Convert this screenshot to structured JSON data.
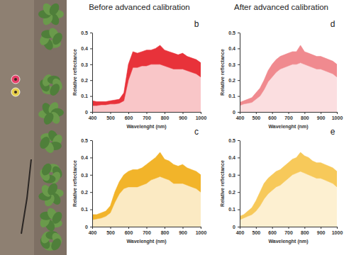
{
  "chart_data": [
    {
      "type": "range_area",
      "panel_label": "b",
      "title": "Before advanced calibration",
      "x_label": "Wavelenght (nm)",
      "y_label": "Relative reflectance",
      "x": [
        400,
        425,
        450,
        475,
        500,
        525,
        550,
        575,
        600,
        625,
        650,
        675,
        700,
        725,
        750,
        775,
        800,
        825,
        850,
        875,
        900,
        925,
        950,
        975,
        1000
      ],
      "xlim": [
        400,
        1000
      ],
      "xticks": [
        400,
        500,
        600,
        700,
        800,
        900,
        1000
      ],
      "ylim": [
        0,
        0.5
      ],
      "yticks": [
        0,
        0.1,
        0.2,
        0.3,
        0.4,
        0.5
      ],
      "series": [
        {
          "color": "#e8323a",
          "values": [
            0.07,
            0.065,
            0.065,
            0.065,
            0.07,
            0.075,
            0.08,
            0.12,
            0.3,
            0.38,
            0.37,
            0.38,
            0.39,
            0.39,
            0.4,
            0.42,
            0.39,
            0.38,
            0.37,
            0.36,
            0.37,
            0.35,
            0.34,
            0.33,
            0.31
          ],
          "low": [
            0.04,
            0.04,
            0.045,
            0.045,
            0.05,
            0.05,
            0.055,
            0.07,
            0.2,
            0.28,
            0.28,
            0.29,
            0.29,
            0.3,
            0.3,
            0.3,
            0.29,
            0.28,
            0.27,
            0.27,
            0.27,
            0.26,
            0.25,
            0.24,
            0.22
          ]
        }
      ]
    },
    {
      "type": "range_area",
      "panel_label": "c",
      "x_label": "Wavelenght (nm)",
      "y_label": "Relative reflectance",
      "x": [
        400,
        425,
        450,
        475,
        500,
        525,
        550,
        575,
        600,
        625,
        650,
        675,
        700,
        725,
        750,
        775,
        800,
        825,
        850,
        875,
        900,
        925,
        950,
        975,
        1000
      ],
      "xlim": [
        400,
        1000
      ],
      "xticks": [
        400,
        500,
        600,
        700,
        800,
        900,
        1000
      ],
      "ylim": [
        0,
        0.5
      ],
      "yticks": [
        0,
        0.1,
        0.2,
        0.3,
        0.4,
        0.5
      ],
      "series": [
        {
          "color": "#f2b42a",
          "values": [
            0.07,
            0.07,
            0.08,
            0.09,
            0.12,
            0.2,
            0.26,
            0.3,
            0.32,
            0.33,
            0.33,
            0.34,
            0.36,
            0.38,
            0.4,
            0.43,
            0.39,
            0.38,
            0.36,
            0.35,
            0.36,
            0.34,
            0.33,
            0.32,
            0.3
          ],
          "low": [
            0.04,
            0.045,
            0.05,
            0.06,
            0.08,
            0.14,
            0.19,
            0.22,
            0.23,
            0.23,
            0.23,
            0.24,
            0.25,
            0.27,
            0.28,
            0.29,
            0.28,
            0.27,
            0.25,
            0.25,
            0.25,
            0.24,
            0.23,
            0.22,
            0.2
          ]
        }
      ]
    },
    {
      "type": "range_area",
      "panel_label": "d",
      "title": "After advanced calibration",
      "x_label": "Wavelenght (nm)",
      "y_label": "Relative reflectance",
      "x": [
        400,
        425,
        450,
        475,
        500,
        525,
        550,
        575,
        600,
        625,
        650,
        675,
        700,
        725,
        750,
        775,
        800,
        825,
        850,
        875,
        900,
        925,
        950,
        975,
        1000
      ],
      "xlim": [
        400,
        1000
      ],
      "xticks": [
        400,
        500,
        600,
        700,
        800,
        900,
        1000
      ],
      "ylim": [
        0,
        0.5
      ],
      "yticks": [
        0,
        0.1,
        0.2,
        0.3,
        0.4,
        0.5
      ],
      "series": [
        {
          "color": "#f08a8f",
          "values": [
            0.06,
            0.07,
            0.08,
            0.09,
            0.12,
            0.15,
            0.2,
            0.26,
            0.3,
            0.33,
            0.35,
            0.36,
            0.37,
            0.38,
            0.38,
            0.42,
            0.38,
            0.37,
            0.36,
            0.35,
            0.35,
            0.34,
            0.33,
            0.32,
            0.3
          ],
          "low": [
            0.04,
            0.05,
            0.055,
            0.06,
            0.08,
            0.1,
            0.14,
            0.19,
            0.22,
            0.25,
            0.27,
            0.28,
            0.29,
            0.3,
            0.3,
            0.31,
            0.3,
            0.29,
            0.28,
            0.27,
            0.27,
            0.26,
            0.25,
            0.24,
            0.22
          ]
        }
      ]
    },
    {
      "type": "range_area",
      "panel_label": "e",
      "x_label": "Wavelenght (nm)",
      "y_label": "Relative reflectance",
      "x": [
        400,
        425,
        450,
        475,
        500,
        525,
        550,
        575,
        600,
        625,
        650,
        675,
        700,
        725,
        750,
        775,
        800,
        825,
        850,
        875,
        900,
        925,
        950,
        975,
        1000
      ],
      "xlim": [
        400,
        1000
      ],
      "xticks": [
        400,
        500,
        600,
        700,
        800,
        900,
        1000
      ],
      "ylim": [
        0,
        0.5
      ],
      "yticks": [
        0,
        0.1,
        0.2,
        0.3,
        0.4,
        0.5
      ],
      "series": [
        {
          "color": "#f7c95a",
          "values": [
            0.06,
            0.07,
            0.09,
            0.11,
            0.15,
            0.2,
            0.25,
            0.28,
            0.3,
            0.32,
            0.33,
            0.35,
            0.37,
            0.39,
            0.4,
            0.43,
            0.41,
            0.4,
            0.38,
            0.37,
            0.37,
            0.36,
            0.35,
            0.34,
            0.32
          ],
          "low": [
            0.04,
            0.05,
            0.06,
            0.07,
            0.09,
            0.12,
            0.16,
            0.19,
            0.21,
            0.23,
            0.24,
            0.26,
            0.28,
            0.3,
            0.31,
            0.32,
            0.31,
            0.3,
            0.29,
            0.28,
            0.28,
            0.27,
            0.26,
            0.25,
            0.23
          ]
        }
      ]
    }
  ]
}
